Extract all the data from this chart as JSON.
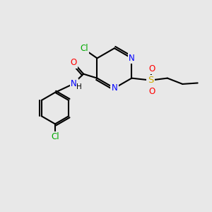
{
  "bg_color": "#e8e8e8",
  "bond_color": "#000000",
  "bond_width": 1.5,
  "atom_colors": {
    "Cl": "#00aa00",
    "N": "#0000ff",
    "O": "#ff0000",
    "S": "#ccaa00",
    "C": "#000000",
    "H": "#000000"
  },
  "fs": 8.5
}
